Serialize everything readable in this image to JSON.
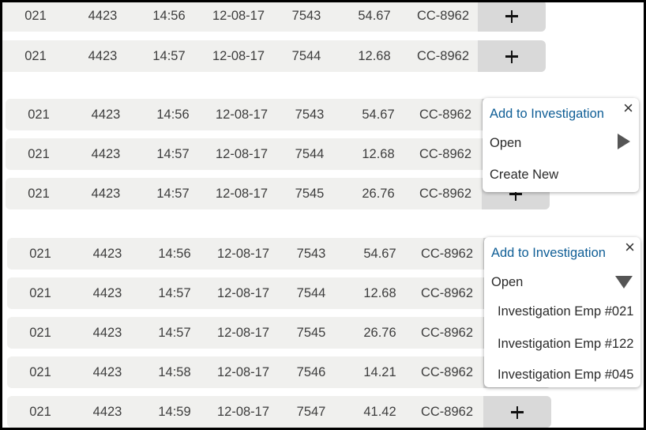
{
  "rows": [
    {
      "group": "a",
      "id": "021",
      "code": "4423",
      "time": "14:56",
      "date": "12-08-17",
      "txn": "7543",
      "amount": "54.67",
      "card": "CC-8962"
    },
    {
      "group": "a",
      "id": "021",
      "code": "4423",
      "time": "14:57",
      "date": "12-08-17",
      "txn": "7544",
      "amount": "12.68",
      "card": "CC-8962"
    },
    {
      "group": "b",
      "id": "021",
      "code": "4423",
      "time": "14:56",
      "date": "12-08-17",
      "txn": "7543",
      "amount": "54.67",
      "card": "CC-8962"
    },
    {
      "group": "b",
      "id": "021",
      "code": "4423",
      "time": "14:57",
      "date": "12-08-17",
      "txn": "7544",
      "amount": "12.68",
      "card": "CC-8962"
    },
    {
      "group": "b",
      "id": "021",
      "code": "4423",
      "time": "14:57",
      "date": "12-08-17",
      "txn": "7545",
      "amount": "26.76",
      "card": "CC-8962"
    },
    {
      "group": "c",
      "id": "021",
      "code": "4423",
      "time": "14:56",
      "date": "12-08-17",
      "txn": "7543",
      "amount": "54.67",
      "card": "CC-8962"
    },
    {
      "group": "c",
      "id": "021",
      "code": "4423",
      "time": "14:57",
      "date": "12-08-17",
      "txn": "7544",
      "amount": "12.68",
      "card": "CC-8962"
    },
    {
      "group": "c",
      "id": "021",
      "code": "4423",
      "time": "14:57",
      "date": "12-08-17",
      "txn": "7545",
      "amount": "26.76",
      "card": "CC-8962"
    },
    {
      "group": "c",
      "id": "021",
      "code": "4423",
      "time": "14:58",
      "date": "12-08-17",
      "txn": "7546",
      "amount": "14.21",
      "card": "CC-8962"
    },
    {
      "group": "c",
      "id": "021",
      "code": "4423",
      "time": "14:59",
      "date": "12-08-17",
      "txn": "7547",
      "amount": "41.42",
      "card": "CC-8962"
    }
  ],
  "popup_collapsed": {
    "title": "Add to Investigation",
    "close_icon": "close-icon",
    "open_label": "Open",
    "open_icon": "triangle-right-icon",
    "create_label": "Create New"
  },
  "popup_expanded": {
    "title": "Add to Investigation",
    "close_icon": "close-icon",
    "open_label": "Open",
    "open_icon": "triangle-down-icon",
    "investigations": [
      "Investigation Emp #021",
      "Investigation Emp #122",
      "Investigation Emp #045"
    ]
  },
  "colors": {
    "row_bg": "#f0f0ee",
    "button_bg": "#d9d9d9",
    "title_blue": "#0f5e96",
    "text": "#3d3d3d"
  }
}
